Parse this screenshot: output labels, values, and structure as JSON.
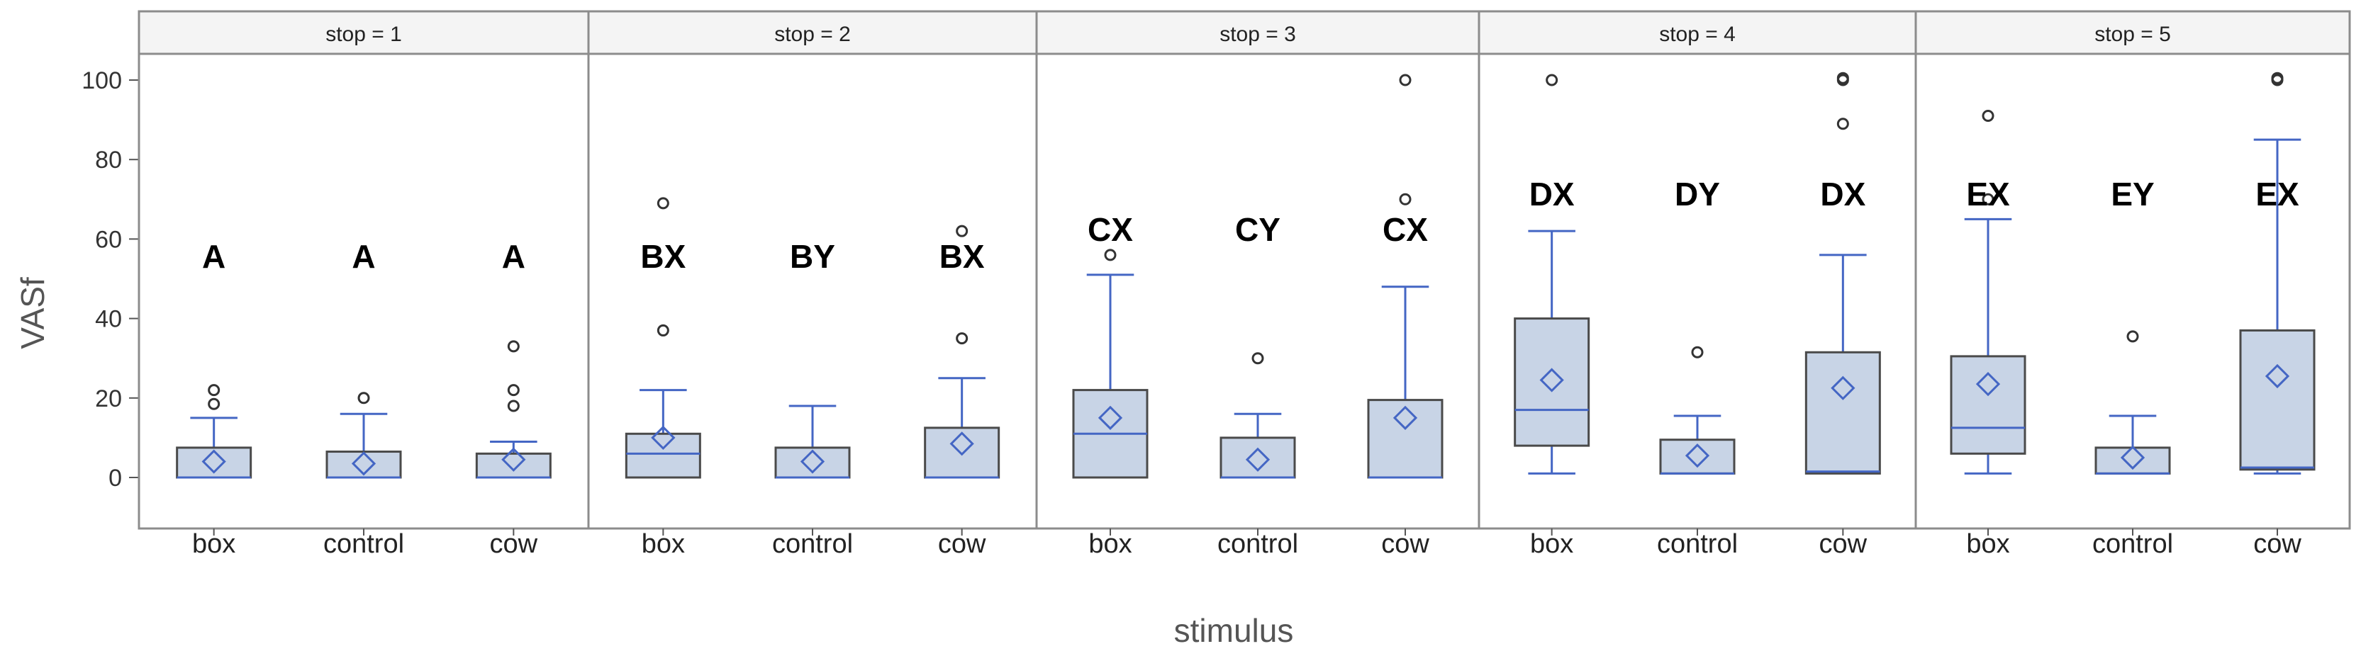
{
  "chart_data": {
    "type": "box",
    "ylabel": "VASf",
    "xlabel": "stimulus",
    "ylim": [
      0,
      100
    ],
    "yticks": [
      0,
      20,
      40,
      60,
      80,
      100
    ],
    "categories": [
      "box",
      "control",
      "cow"
    ],
    "colors": {
      "box_fill": "#c8d4e6",
      "box_stroke": "#4a4a4a",
      "whisker": "#4466c4",
      "outlier": "#333333",
      "frame": "#8c8c8c",
      "title_bg": "#f4f4f4"
    },
    "panels": [
      {
        "title": "stop = 1",
        "groups": [
          {
            "category": "box",
            "q1": 0,
            "median": 0,
            "q3": 7.5,
            "wlow": 0,
            "whigh": 15,
            "mean": 4,
            "outliers": [
              18.5,
              22
            ],
            "letter": "A"
          },
          {
            "category": "control",
            "q1": 0,
            "median": 0,
            "q3": 6.5,
            "wlow": 0,
            "whigh": 16,
            "mean": 3.5,
            "outliers": [
              20
            ],
            "letter": "A"
          },
          {
            "category": "cow",
            "q1": 0,
            "median": 0,
            "q3": 6,
            "wlow": 0,
            "whigh": 9,
            "mean": 4.5,
            "outliers": [
              18,
              22,
              33
            ],
            "letter": "A"
          }
        ]
      },
      {
        "title": "stop = 2",
        "groups": [
          {
            "category": "box",
            "q1": 0,
            "median": 6,
            "q3": 11,
            "wlow": 0,
            "whigh": 22,
            "mean": 10,
            "outliers": [
              37,
              69
            ],
            "letter": "BX"
          },
          {
            "category": "control",
            "q1": 0,
            "median": 0,
            "q3": 7.5,
            "wlow": 0,
            "whigh": 18,
            "mean": 4,
            "outliers": [],
            "letter": "BY"
          },
          {
            "category": "cow",
            "q1": 0,
            "median": 0,
            "q3": 12.5,
            "wlow": 0,
            "whigh": 25,
            "mean": 8.5,
            "outliers": [
              35,
              62
            ],
            "letter": "BX"
          }
        ]
      },
      {
        "title": "stop = 3",
        "groups": [
          {
            "category": "box",
            "q1": 0,
            "median": 11,
            "q3": 22,
            "wlow": 0,
            "whigh": 51,
            "mean": 15,
            "outliers": [
              56
            ],
            "letter": "CX"
          },
          {
            "category": "control",
            "q1": 0,
            "median": 0,
            "q3": 10,
            "wlow": 0,
            "whigh": 16,
            "mean": 4.5,
            "outliers": [
              30
            ],
            "letter": "CY"
          },
          {
            "category": "cow",
            "q1": 0,
            "median": 0,
            "q3": 19.5,
            "wlow": 0,
            "whigh": 48,
            "mean": 15,
            "outliers": [
              70,
              100
            ],
            "letter": "CX"
          }
        ]
      },
      {
        "title": "stop = 4",
        "groups": [
          {
            "category": "box",
            "q1": 8,
            "median": 17,
            "q3": 40,
            "wlow": 1,
            "whigh": 62,
            "mean": 24.5,
            "outliers": [
              100
            ],
            "letter": "DX"
          },
          {
            "category": "control",
            "q1": 1,
            "median": 1,
            "q3": 9.5,
            "wlow": 1,
            "whigh": 15.5,
            "mean": 5.5,
            "outliers": [
              31.5
            ],
            "letter": "DY"
          },
          {
            "category": "cow",
            "q1": 1,
            "median": 1.5,
            "q3": 31.5,
            "wlow": 1,
            "whigh": 56,
            "mean": 22.5,
            "outliers": [
              89,
              100,
              100.5
            ],
            "letter": "DX"
          }
        ]
      },
      {
        "title": "stop = 5",
        "groups": [
          {
            "category": "box",
            "q1": 6,
            "median": 12.5,
            "q3": 30.5,
            "wlow": 1,
            "whigh": 65,
            "mean": 23.5,
            "outliers": [
              70,
              91
            ],
            "letter": "EX"
          },
          {
            "category": "control",
            "q1": 1,
            "median": 1,
            "q3": 7.5,
            "wlow": 1,
            "whigh": 15.5,
            "mean": 5,
            "outliers": [
              35.5
            ],
            "letter": "EY"
          },
          {
            "category": "cow",
            "q1": 2,
            "median": 2.5,
            "q3": 37,
            "wlow": 1,
            "whigh": 85,
            "mean": 25.5,
            "outliers": [
              100,
              100.5
            ],
            "letter": "EX"
          }
        ]
      }
    ]
  }
}
